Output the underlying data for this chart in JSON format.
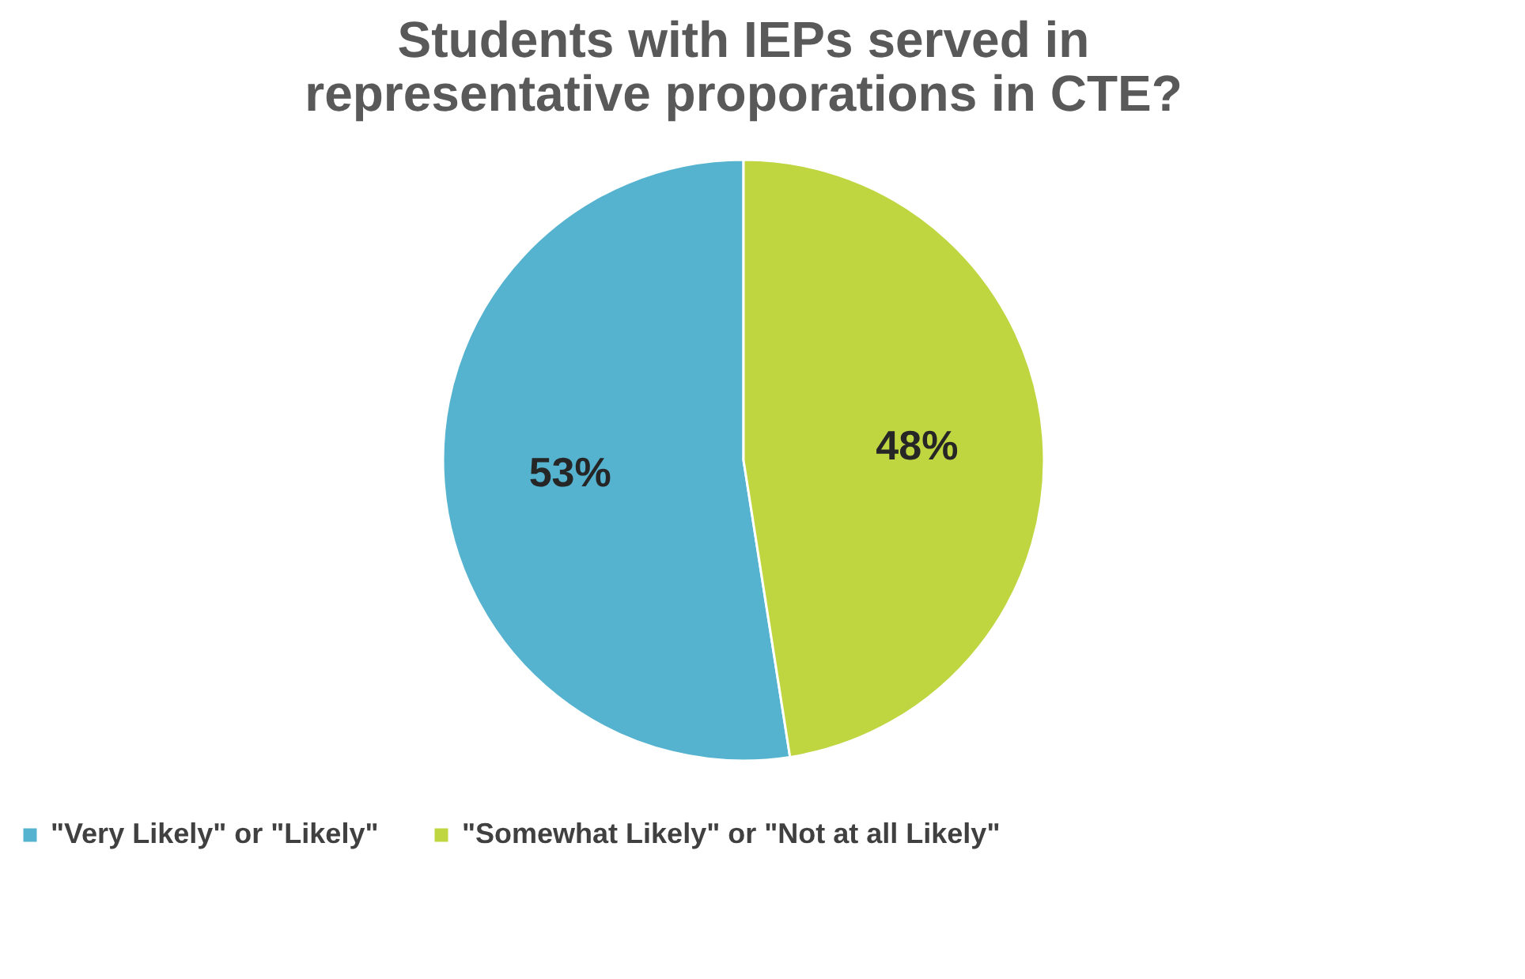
{
  "chart_data": {
    "type": "pie",
    "title": [
      "Students with IEPs served in",
      "representative proporations in CTE?"
    ],
    "categories": [
      "\"Very Likely\" or \"Likely\"",
      "\"Somewhat Likely\" or \"Not at all Likely\""
    ],
    "values": [
      53,
      48
    ],
    "colors": [
      "#55b3cf",
      "#bfd641"
    ],
    "value_labels": [
      "53%",
      "48%"
    ],
    "legend": "bottom"
  }
}
